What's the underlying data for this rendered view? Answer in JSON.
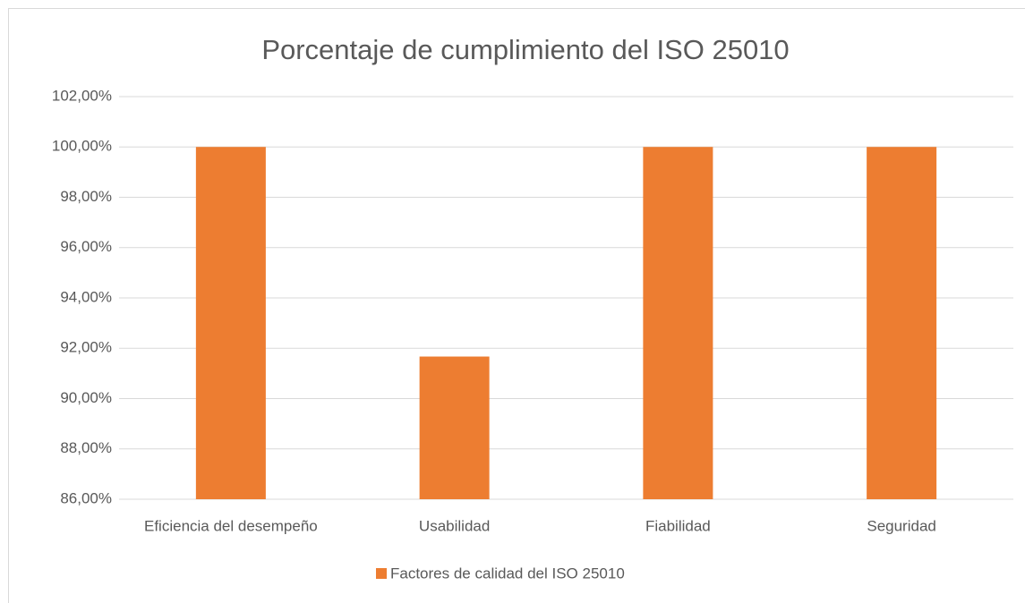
{
  "chart_data": {
    "type": "bar",
    "title": "Porcentaje de cumplimiento del ISO 25010",
    "categories": [
      "Eficiencia del desempeño",
      "Usabilidad",
      "Fiabilidad",
      "Seguridad"
    ],
    "series": [
      {
        "name": "Factores de calidad del ISO 25010",
        "color": "#ed7d31",
        "values": [
          100,
          91.67,
          100,
          100
        ]
      }
    ],
    "ylim": [
      86,
      102
    ],
    "yticks": [
      {
        "value": 86,
        "label": "86,00%"
      },
      {
        "value": 88,
        "label": "88,00%"
      },
      {
        "value": 90,
        "label": "90,00%"
      },
      {
        "value": 92,
        "label": "92,00%"
      },
      {
        "value": 94,
        "label": "94,00%"
      },
      {
        "value": 96,
        "label": "96,00%"
      },
      {
        "value": 98,
        "label": "98,00%"
      },
      {
        "value": 100,
        "label": "100,00%"
      },
      {
        "value": 102,
        "label": "102,00%"
      }
    ],
    "grid": true,
    "legend": "bottom"
  }
}
